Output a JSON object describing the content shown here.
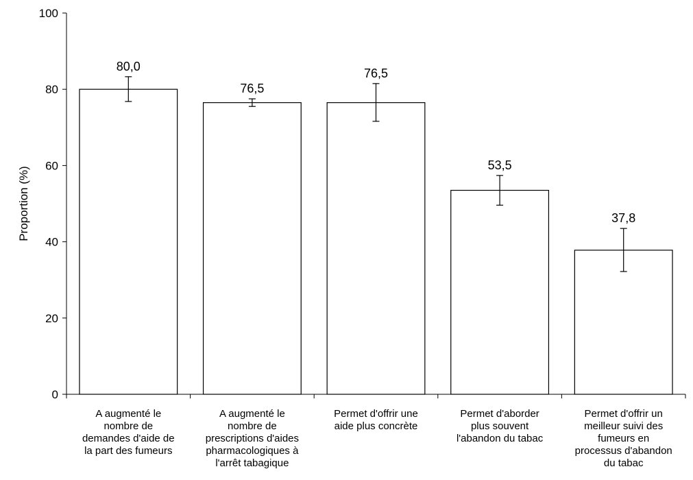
{
  "chart_data": {
    "type": "bar",
    "title": "",
    "xlabel": "",
    "ylabel": "Proportion (%)",
    "ylim": [
      0,
      100
    ],
    "yticks": [
      "0",
      "20",
      "40",
      "60",
      "80",
      "100"
    ],
    "grid": false,
    "legend": "none",
    "categories": [
      [
        "A augmenté le",
        "nombre de",
        "demandes d'aide de",
        "la part des fumeurs"
      ],
      [
        "A augmenté le",
        "nombre de",
        "prescriptions d'aides",
        "pharmacologiques à",
        "l'arrêt tabagique"
      ],
      [
        "Permet d'offrir une",
        "aide plus concrète"
      ],
      [
        "Permet d'aborder",
        "plus souvent",
        "l'abandon du tabac"
      ],
      [
        "Permet d'offrir un",
        "meilleur suivi des",
        "fumeurs en",
        "processus d'abandon",
        "du tabac"
      ]
    ],
    "values": [
      80.0,
      76.5,
      76.5,
      53.5,
      37.8
    ],
    "value_labels": [
      "80,0",
      "76,5",
      "76,5",
      "53,5",
      "37,8"
    ],
    "error_low": [
      76.8,
      75.5,
      71.6,
      49.6,
      32.2
    ],
    "error_high": [
      83.3,
      77.5,
      81.5,
      57.4,
      43.5
    ],
    "bar_color": "#ffffff",
    "edge_color": "#000000"
  }
}
